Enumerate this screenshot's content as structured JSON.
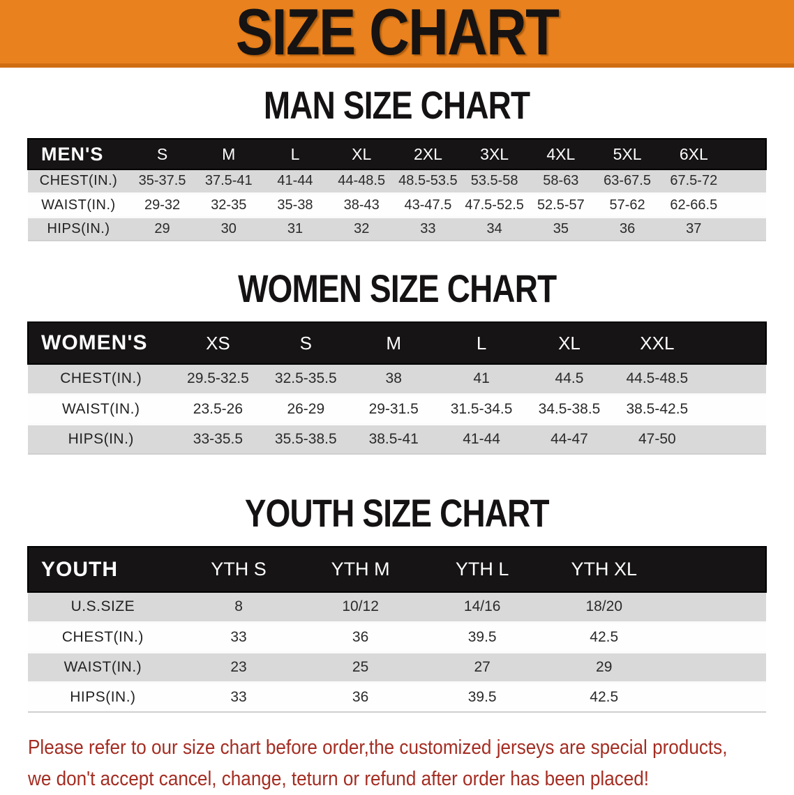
{
  "banner": {
    "title": "SIZE CHART",
    "bg_color": "#e8811e",
    "text_color": "#161312"
  },
  "sections": [
    {
      "heading": "MAN SIZE CHART",
      "table": {
        "header_label": "MEN'S",
        "columns": [
          "S",
          "M",
          "L",
          "XL",
          "2XL",
          "3XL",
          "4XL",
          "5XL",
          "6XL"
        ],
        "rows": [
          {
            "label": "CHEST(IN.)",
            "values": [
              "35-37.5",
              "37.5-41",
              "41-44",
              "44-48.5",
              "48.5-53.5",
              "53.5-58",
              "58-63",
              "63-67.5",
              "67.5-72"
            ]
          },
          {
            "label": "WAIST(IN.)",
            "values": [
              "29-32",
              "32-35",
              "35-38",
              "38-43",
              "43-47.5",
              "47.5-52.5",
              "52.5-57",
              "57-62",
              "62-66.5"
            ]
          },
          {
            "label": "HIPS(IN.)",
            "values": [
              "29",
              "30",
              "31",
              "32",
              "33",
              "34",
              "35",
              "36",
              "37"
            ]
          }
        ]
      }
    },
    {
      "heading": "WOMEN SIZE CHART",
      "table": {
        "header_label": "WOMEN'S",
        "columns": [
          "XS",
          "S",
          "M",
          "L",
          "XL",
          "XXL"
        ],
        "rows": [
          {
            "label": "CHEST(IN.)",
            "values": [
              "29.5-32.5",
              "32.5-35.5",
              "38",
              "41",
              "44.5",
              "44.5-48.5"
            ]
          },
          {
            "label": "WAIST(IN.)",
            "values": [
              "23.5-26",
              "26-29",
              "29-31.5",
              "31.5-34.5",
              "34.5-38.5",
              "38.5-42.5"
            ]
          },
          {
            "label": "HIPS(IN.)",
            "values": [
              "33-35.5",
              "35.5-38.5",
              "38.5-41",
              "41-44",
              "44-47",
              "47-50"
            ]
          }
        ]
      }
    },
    {
      "heading": "YOUTH SIZE CHART",
      "table": {
        "header_label": "YOUTH",
        "columns": [
          "YTH S",
          "YTH M",
          "YTH L",
          "YTH XL"
        ],
        "rows": [
          {
            "label": "U.S.SIZE",
            "values": [
              "8",
              "10/12",
              "14/16",
              "18/20"
            ]
          },
          {
            "label": "CHEST(IN.)",
            "values": [
              "33",
              "36",
              "39.5",
              "42.5"
            ]
          },
          {
            "label": "WAIST(IN.)",
            "values": [
              "23",
              "25",
              "27",
              "29"
            ]
          },
          {
            "label": "HIPS(IN.)",
            "values": [
              "33",
              "36",
              "39.5",
              "42.5"
            ]
          }
        ]
      }
    }
  ],
  "disclaimer": {
    "line1": "Please refer to our size chart before order,the customized jerseys are special products,",
    "line2": "we don't accept cancel, change, teturn or refund after order has been placed!",
    "text_color": "#a42d22",
    "header_bar_color": "#161414",
    "stripe_color": "#d9d9d9"
  }
}
